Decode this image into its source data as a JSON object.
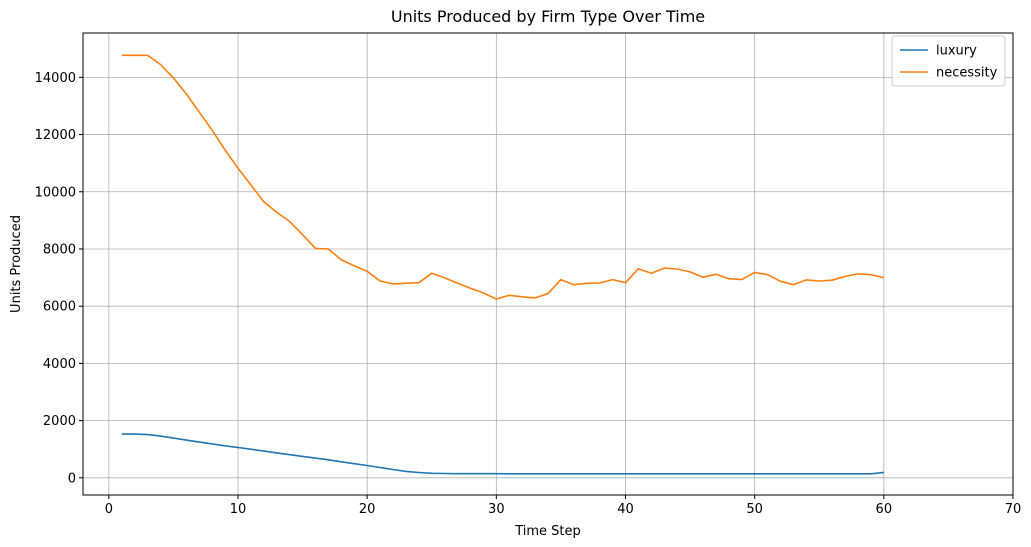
{
  "chart_data": {
    "type": "line",
    "title": "Units Produced by Firm Type Over Time",
    "xlabel": "Time Step",
    "ylabel": "Units Produced",
    "xlim": [
      -2,
      70
    ],
    "ylim": [
      -600,
      15550
    ],
    "xticks": [
      0,
      10,
      20,
      30,
      40,
      50,
      60,
      70
    ],
    "yticks": [
      0,
      2000,
      4000,
      6000,
      8000,
      10000,
      12000,
      14000
    ],
    "grid": true,
    "legend_position": "top-right",
    "series": [
      {
        "name": "luxury",
        "color": "#1f77b4",
        "x": [
          1,
          2,
          3,
          4,
          5,
          6,
          7,
          8,
          9,
          10,
          11,
          12,
          13,
          14,
          15,
          16,
          17,
          18,
          19,
          20,
          21,
          22,
          23,
          24,
          25,
          26,
          27,
          28,
          29,
          30,
          31,
          32,
          33,
          34,
          35,
          36,
          37,
          38,
          39,
          40,
          41,
          42,
          43,
          44,
          45,
          46,
          47,
          48,
          49,
          50,
          51,
          52,
          53,
          54,
          55,
          56,
          57,
          58,
          59,
          60
        ],
        "y": [
          1530,
          1530,
          1510,
          1460,
          1390,
          1320,
          1250,
          1185,
          1120,
          1060,
          1000,
          935,
          870,
          810,
          750,
          690,
          630,
          560,
          495,
          430,
          360,
          290,
          225,
          185,
          160,
          150,
          145,
          145,
          145,
          145,
          140,
          140,
          140,
          140,
          140,
          140,
          140,
          140,
          140,
          140,
          140,
          140,
          140,
          140,
          140,
          140,
          140,
          140,
          140,
          140,
          140,
          140,
          140,
          140,
          140,
          140,
          140,
          140,
          140,
          190
        ]
      },
      {
        "name": "necessity",
        "color": "#ff7f0e",
        "x": [
          1,
          2,
          3,
          4,
          5,
          6,
          7,
          8,
          9,
          10,
          11,
          12,
          13,
          14,
          15,
          16,
          17,
          18,
          19,
          20,
          21,
          22,
          23,
          24,
          25,
          26,
          27,
          28,
          29,
          30,
          31,
          32,
          33,
          34,
          35,
          36,
          37,
          38,
          39,
          40,
          41,
          42,
          43,
          44,
          45,
          46,
          47,
          48,
          49,
          50,
          51,
          52,
          53,
          54,
          55,
          56,
          57,
          58,
          59,
          60
        ],
        "y": [
          14770,
          14770,
          14770,
          14450,
          13980,
          13420,
          12780,
          12150,
          11460,
          10820,
          10240,
          9650,
          9280,
          8960,
          8500,
          8020,
          8000,
          7620,
          7410,
          7220,
          6880,
          6780,
          6800,
          6820,
          7150,
          6990,
          6800,
          6630,
          6460,
          6250,
          6380,
          6330,
          6290,
          6440,
          6930,
          6750,
          6800,
          6810,
          6930,
          6820,
          7310,
          7150,
          7330,
          7300,
          7200,
          7010,
          7120,
          6960,
          6930,
          7180,
          7100,
          6870,
          6750,
          6920,
          6880,
          6910,
          7040,
          7130,
          7100,
          7000
        ]
      }
    ]
  }
}
